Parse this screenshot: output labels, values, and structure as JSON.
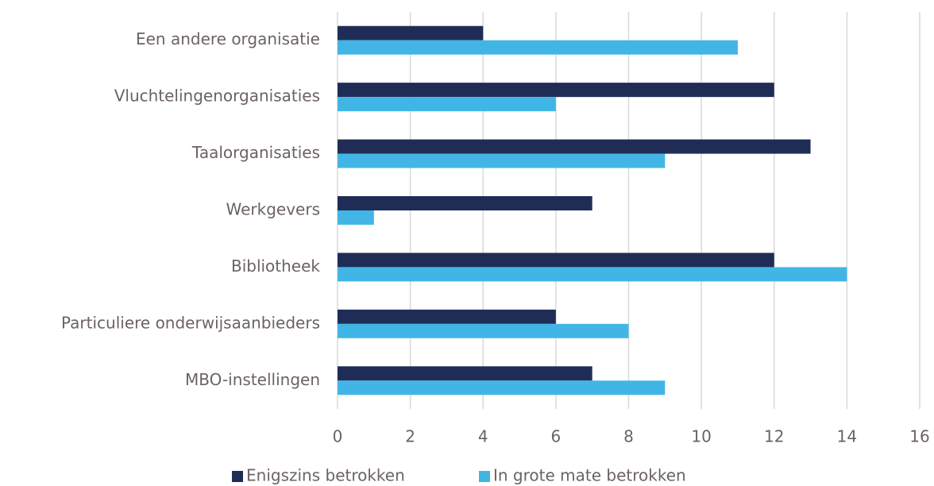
{
  "chart_data": {
    "type": "bar",
    "orientation": "horizontal",
    "categories": [
      "Een andere organisatie",
      "Vluchtelingenorganisaties",
      "Taalorganisaties",
      "Werkgevers",
      "Bibliotheek",
      "Particuliere onderwijsaanbieders",
      "MBO-instellingen"
    ],
    "series": [
      {
        "name": "Enigszins betrokken",
        "color": "#1f2d56",
        "values": [
          4,
          12,
          13,
          7,
          12,
          6,
          7
        ]
      },
      {
        "name": "In grote mate betrokken",
        "color": "#41b6e6",
        "values": [
          11,
          6,
          9,
          1,
          14,
          8,
          9
        ]
      }
    ],
    "xlim": [
      0,
      16
    ],
    "xticks": [
      0,
      2,
      4,
      6,
      8,
      10,
      12,
      14,
      16
    ],
    "grid": true,
    "legend": "bottom"
  }
}
